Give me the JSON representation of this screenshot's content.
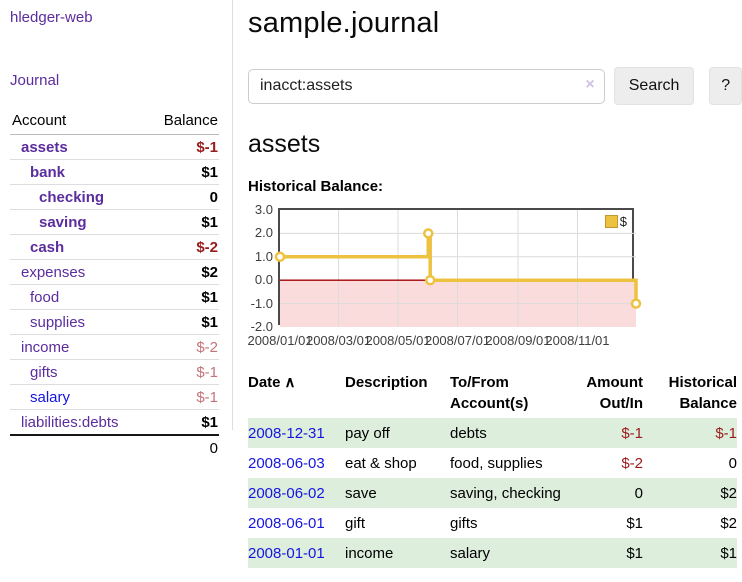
{
  "sidebar": {
    "brand": "hledger-web",
    "nav": [
      {
        "label": "Journal"
      }
    ],
    "accounts_table": {
      "headers": [
        "Account",
        "Balance"
      ],
      "rows": [
        {
          "label": "assets",
          "balance": "$-1",
          "depth": 1,
          "row_tone": "matched",
          "balance_tone": "negative-strong",
          "link_tone": "visited"
        },
        {
          "label": "bank",
          "balance": "$1",
          "depth": 2,
          "row_tone": "matched",
          "balance_tone": "normal",
          "link_tone": "visited"
        },
        {
          "label": "checking",
          "balance": "0",
          "depth": 3,
          "row_tone": "matched",
          "balance_tone": "normal",
          "link_tone": "visited"
        },
        {
          "label": "saving",
          "balance": "$1",
          "depth": 3,
          "row_tone": "matched",
          "balance_tone": "normal",
          "link_tone": "visited"
        },
        {
          "label": "cash",
          "balance": "$-2",
          "depth": 2,
          "row_tone": "matched",
          "balance_tone": "negative-strong",
          "link_tone": "visited"
        },
        {
          "label": "expenses",
          "balance": "$2",
          "depth": 1,
          "row_tone": "plain",
          "balance_tone": "normal",
          "link_tone": "visited"
        },
        {
          "label": "food",
          "balance": "$1",
          "depth": 2,
          "row_tone": "plain",
          "balance_tone": "normal",
          "link_tone": "visited"
        },
        {
          "label": "supplies",
          "balance": "$1",
          "depth": 2,
          "row_tone": "plain",
          "balance_tone": "normal",
          "link_tone": "visited"
        },
        {
          "label": "income",
          "balance": "$-2",
          "depth": 1,
          "row_tone": "plain",
          "balance_tone": "negative-soft",
          "link_tone": "visited"
        },
        {
          "label": "gifts",
          "balance": "$-1",
          "depth": 2,
          "row_tone": "plain",
          "balance_tone": "negative-soft",
          "link_tone": "visited"
        },
        {
          "label": "salary",
          "balance": "$-1",
          "depth": 2,
          "row_tone": "plain",
          "balance_tone": "negative-soft",
          "link_tone": "unvisited"
        },
        {
          "label": "liabilities:debts",
          "balance": "$1",
          "depth": 1,
          "row_tone": "plain",
          "balance_tone": "normal",
          "link_tone": "visited"
        }
      ],
      "total": "0"
    }
  },
  "header": {
    "title": "sample.journal"
  },
  "search": {
    "value": "inacct:assets",
    "clear_icon": "×",
    "button": "Search",
    "help_button": "?"
  },
  "account_page": {
    "heading": "assets",
    "chart_label": "Historical Balance:"
  },
  "chart_data": {
    "type": "line",
    "style": "step",
    "title": "Historical Balance",
    "series": [
      {
        "name": "$",
        "points": [
          {
            "date": "2008-01-01",
            "value": 1.0
          },
          {
            "date": "2008-06-01",
            "value": 2.0
          },
          {
            "date": "2008-06-03",
            "value": 0.0
          },
          {
            "date": "2008-12-31",
            "value": -1.0
          }
        ]
      }
    ],
    "x_range": [
      "2008-01-01",
      "2008-12-31"
    ],
    "x_ticks": [
      "2008/01/01",
      "2008/03/01",
      "2008/05/01",
      "2008/07/01",
      "2008/09/01",
      "2008/11/01"
    ],
    "y_ticks": [
      3.0,
      2.0,
      1.0,
      0.0,
      -1.0,
      -2.0
    ],
    "ylim": [
      -2.0,
      3.0
    ],
    "grid": true,
    "legend_position": "top-right",
    "negative_region_shaded": true
  },
  "register": {
    "sort_icon": "∧",
    "headers": [
      "Date",
      "Description",
      "To/From Account(s)",
      "Amount Out/In",
      "Historical Balance"
    ],
    "rows": [
      {
        "date": "2008-12-31",
        "description": "pay off",
        "accounts": "debts",
        "amount": "$-1",
        "balance": "$-1",
        "amount_tone": "neg",
        "balance_tone2": "neg"
      },
      {
        "date": "2008-06-03",
        "description": "eat & shop",
        "accounts": "food, supplies",
        "amount": "$-2",
        "balance": "0",
        "amount_tone": "neg",
        "balance_tone2": "norm"
      },
      {
        "date": "2008-06-02",
        "description": "save",
        "accounts": "saving, checking",
        "amount": "0",
        "balance": "$2",
        "amount_tone": "norm",
        "balance_tone2": "norm"
      },
      {
        "date": "2008-06-01",
        "description": "gift",
        "accounts": "gifts",
        "amount": "$1",
        "balance": "$2",
        "amount_tone": "norm",
        "balance_tone2": "norm"
      },
      {
        "date": "2008-01-01",
        "description": "income",
        "accounts": "salary",
        "amount": "$1",
        "balance": "$1",
        "amount_tone": "norm",
        "balance_tone2": "norm"
      }
    ]
  },
  "colors": {
    "purple_link": "#5b2d9e",
    "unvisited_link": "#1515e0",
    "negative_strong": "#9a1b1b",
    "negative_soft": "#c4737b",
    "series_gold": "#edc240",
    "series_gold_border": "#bf982f",
    "chart_negative_fill": "#fbdcdc",
    "chart_zero_line": "#a40000",
    "grid_line": "#dcdcdc",
    "row_stripe": "#ddeedd"
  }
}
